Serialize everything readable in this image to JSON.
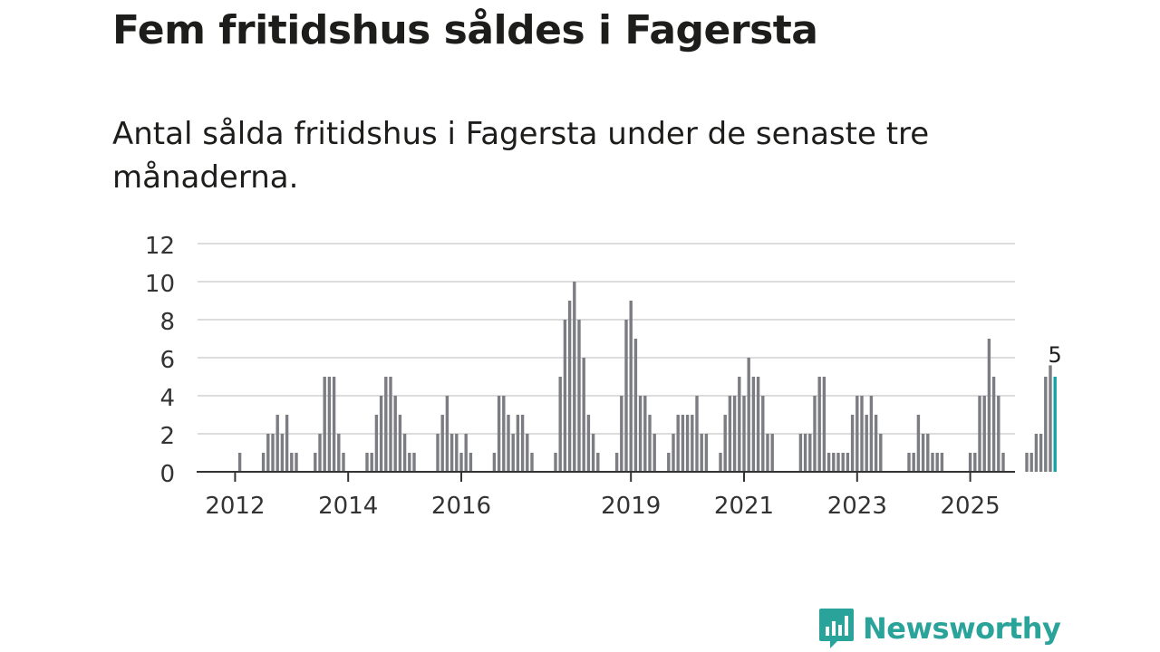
{
  "header": {
    "title": "Fem fritidshus såldes i Fagersta",
    "subtitle": "Antal sålda fritidshus i Fagersta under de senaste tre månaderna."
  },
  "brand": {
    "name": "Newsworthy",
    "logo_icon": "chat-bar-chart-icon",
    "color": "#2aa39a"
  },
  "colors": {
    "bar": "#7c7c83",
    "highlight": "#13a3a3",
    "grid": "#dcdcdc",
    "axis": "#333333"
  },
  "chart_data": {
    "type": "bar",
    "x_start": "2011-08",
    "interval": "month",
    "ylim": [
      0,
      12
    ],
    "yticks": [
      0,
      2,
      4,
      6,
      8,
      10,
      12
    ],
    "xticks": [
      "2012",
      "2014",
      "2016",
      "2019",
      "2021",
      "2023",
      "2025"
    ],
    "grid": true,
    "highlight_last": true,
    "last_value_label": "5",
    "values": [
      0,
      0,
      0,
      0,
      0,
      0,
      1,
      0,
      0,
      0,
      0,
      1,
      2,
      2,
      3,
      2,
      3,
      1,
      1,
      0,
      0,
      0,
      1,
      2,
      5,
      5,
      5,
      2,
      1,
      0,
      0,
      0,
      0,
      1,
      1,
      3,
      4,
      5,
      5,
      4,
      3,
      2,
      1,
      1,
      0,
      0,
      0,
      0,
      2,
      3,
      4,
      2,
      2,
      1,
      2,
      1,
      0,
      0,
      0,
      0,
      1,
      4,
      4,
      3,
      2,
      3,
      3,
      2,
      1,
      0,
      0,
      0,
      0,
      1,
      5,
      8,
      9,
      10,
      8,
      6,
      3,
      2,
      1,
      0,
      0,
      0,
      1,
      4,
      8,
      9,
      7,
      4,
      4,
      3,
      2,
      0,
      0,
      1,
      2,
      3,
      3,
      3,
      3,
      4,
      2,
      2,
      0,
      0,
      1,
      3,
      4,
      4,
      5,
      4,
      6,
      5,
      5,
      4,
      2,
      2,
      0,
      0,
      0,
      0,
      0,
      2,
      2,
      2,
      4,
      5,
      5,
      1,
      1,
      1,
      1,
      1,
      3,
      4,
      4,
      3,
      4,
      3,
      2,
      0,
      0,
      0,
      0,
      0,
      1,
      1,
      3,
      2,
      2,
      1,
      1,
      1,
      0,
      0,
      0,
      0,
      0,
      1,
      1,
      4,
      4,
      7,
      5,
      4,
      1,
      0,
      0,
      0,
      0,
      1,
      1,
      2,
      2,
      5,
      5.6,
      5
    ]
  }
}
